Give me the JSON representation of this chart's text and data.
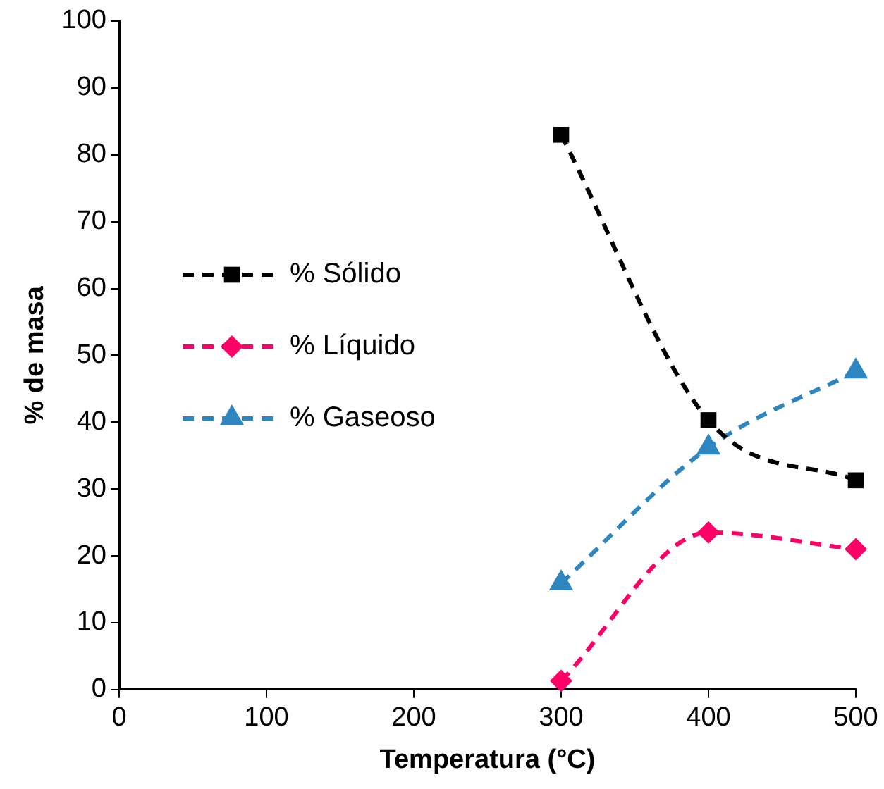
{
  "chart_data": {
    "type": "line",
    "xlabel": "Temperatura (°C)",
    "ylabel": "% de masa",
    "x": [
      300,
      400,
      500
    ],
    "series": [
      {
        "name": "% Sólido",
        "color": "#000000",
        "marker": "square",
        "values": [
          83,
          40.3,
          31.3
        ]
      },
      {
        "name": "% Líquido",
        "color": "#ff0066",
        "marker": "diamond",
        "values": [
          1.3,
          23.5,
          21
        ]
      },
      {
        "name": "% Gaseoso",
        "color": "#2e86c1",
        "marker": "triangle",
        "values": [
          15.9,
          36.2,
          47.6
        ]
      }
    ],
    "xlim": [
      0,
      500
    ],
    "xticks": [
      0,
      100,
      200,
      300,
      400,
      500
    ],
    "ylim": [
      0,
      100
    ],
    "yticks": [
      0,
      10,
      20,
      30,
      40,
      50,
      60,
      70,
      80,
      90,
      100
    ],
    "grid": false,
    "legend": "left",
    "line_style": "dashed"
  }
}
